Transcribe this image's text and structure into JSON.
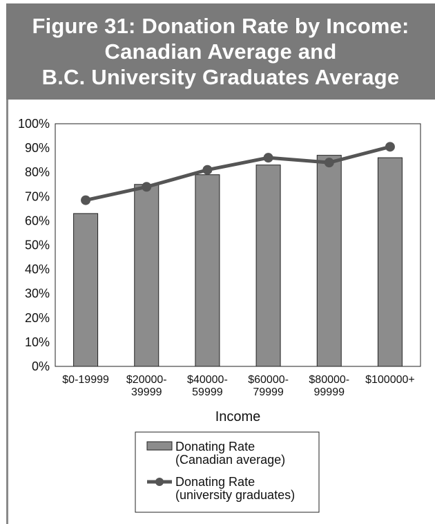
{
  "header": {
    "title_lines": [
      "Figure 31: Donation Rate by Income:",
      "Canadian Average and",
      "B.C. University Graduates Average"
    ]
  },
  "chart_data": {
    "type": "bar",
    "title": "Figure 31: Donation Rate by Income: Canadian Average and B.C. University Graduates Average",
    "xlabel": "Income",
    "ylabel": "",
    "ylim": [
      0,
      100
    ],
    "yticks": [
      "0%",
      "10%",
      "20%",
      "30%",
      "40%",
      "50%",
      "60%",
      "70%",
      "80%",
      "90%",
      "100%"
    ],
    "categories": [
      [
        "$0-19999"
      ],
      [
        "$20000-",
        "39999"
      ],
      [
        "$40000-",
        "59999"
      ],
      [
        "$60000-",
        "79999"
      ],
      [
        "$80000-",
        "99999"
      ],
      [
        "$100000+"
      ]
    ],
    "series": [
      {
        "name_lines": [
          "Donating Rate",
          "(Canadian average)"
        ],
        "type": "bar",
        "color": "#8c8c8c",
        "values": [
          63,
          75,
          79,
          83,
          87,
          86
        ]
      },
      {
        "name_lines": [
          "Donating Rate",
          "(university graduates)"
        ],
        "type": "line",
        "color": "#555555",
        "values": [
          68.5,
          74,
          81,
          86,
          84,
          90.5
        ]
      }
    ],
    "grid": false,
    "legend_position": "bottom"
  },
  "colors": {
    "header_bg": "#7a7a7a",
    "bar": "#8c8c8c",
    "line": "#555555"
  }
}
